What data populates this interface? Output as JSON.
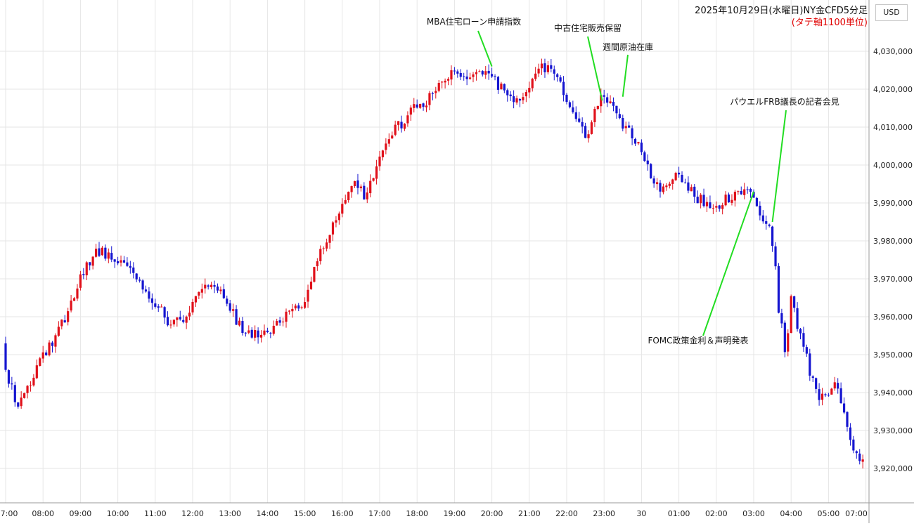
{
  "header": {
    "title": "2025年10月29日(水曜日)NY金CFD5分足",
    "subtitle": "(タテ軸1100単位)",
    "currency_button": "USD"
  },
  "chart_data": {
    "type": "candlestick",
    "title": "2025年10月29日(水曜日)NY金CFD5分足",
    "subtitle": "(タテ軸1100単位)",
    "unit": "USD",
    "xlabel": "",
    "ylabel": "",
    "x_tick_labels": [
      "7:00",
      "08:00",
      "09:00",
      "10:00",
      "11:00",
      "12:00",
      "13:00",
      "14:00",
      "15:00",
      "16:00",
      "17:00",
      "18:00",
      "19:00",
      "20:00",
      "21:00",
      "22:00",
      "23:00",
      "30",
      "01:00",
      "02:00",
      "03:00",
      "04:00",
      "05:00",
      "07:00"
    ],
    "y_tick_labels": [
      "3,920,000",
      "3,930,000",
      "3,940,000",
      "3,950,000",
      "3,960,000",
      "3,970,000",
      "3,980,000",
      "3,990,000",
      "4,000,000",
      "4,010,000",
      "4,020,000",
      "4,030,000"
    ],
    "y_ticks": [
      3920000,
      3930000,
      3940000,
      3950000,
      3960000,
      3970000,
      3980000,
      3990000,
      4000000,
      4010000,
      4020000,
      4030000
    ],
    "ylim": [
      3911000,
      4043000
    ],
    "grid": true,
    "colors": {
      "up": "#e0101a",
      "down": "#1515d0",
      "annotation_line": "#22dd22",
      "subtitle": "#e00000",
      "grid": "#e6e6e6"
    },
    "close_path_hours": [
      7.0,
      7.4,
      8.0,
      8.6,
      9.0,
      9.5,
      9.8,
      10.3,
      10.7,
      11.0,
      11.5,
      11.9,
      12.3,
      12.8,
      13.3,
      13.6,
      14.0,
      14.5,
      15.0,
      15.5,
      16.0,
      16.4,
      16.7,
      17.0,
      17.4,
      18.0,
      18.5,
      19.0,
      19.3,
      19.8,
      20.2,
      20.7,
      21.0,
      21.3,
      21.8,
      22.2,
      22.6,
      23.0,
      23.3,
      23.7,
      24.0,
      24.5,
      25.0,
      25.5,
      26.0,
      26.5,
      27.0,
      27.3,
      27.5,
      27.9,
      28.1,
      28.3,
      28.6,
      28.9,
      29.3,
      29.6,
      29.9
    ],
    "close_path_values": [
      3950000,
      3935000,
      3948000,
      3958000,
      3968000,
      3978000,
      3976000,
      3975000,
      3968000,
      3965000,
      3958000,
      3960000,
      3968000,
      3968000,
      3958000,
      3956000,
      3955000,
      3960000,
      3962000,
      3978000,
      3987000,
      3995000,
      3992000,
      4000000,
      4008000,
      4015000,
      4018000,
      4025000,
      4024000,
      4025000,
      4022000,
      4016000,
      4018000,
      4026000,
      4024000,
      4014000,
      4008000,
      4018000,
      4016000,
      4009000,
      4005000,
      3994000,
      3997000,
      3992000,
      3989000,
      3992000,
      3993000,
      3986000,
      3984000,
      3952000,
      3965000,
      3958000,
      3945000,
      3938000,
      3944000,
      3930000,
      3922000
    ],
    "annotations": [
      {
        "text": "MBA住宅ローン申請指数",
        "time_hour": 20.0,
        "price": 4026000
      },
      {
        "text": "中古住宅販売保留",
        "time_hour": 22.95,
        "price": 4017000
      },
      {
        "text": "週間原油在庫",
        "time_hour": 23.5,
        "price": 4018000
      },
      {
        "text": "パウエルFRB議長の記者会見",
        "time_hour": 27.5,
        "price": 3985000
      },
      {
        "text": "FOMC政策金利＆声明発表",
        "time_hour": 27.0,
        "price": 3993000
      }
    ]
  }
}
